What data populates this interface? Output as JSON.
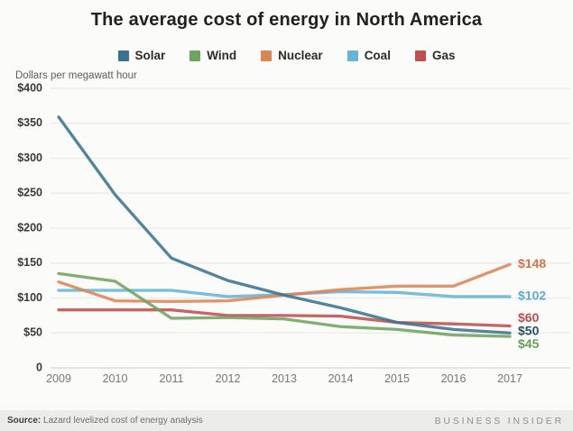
{
  "chart_data": {
    "type": "line",
    "title": "The average cost of energy in North America",
    "y_axis_label": "Dollars per megawatt hour",
    "categories": [
      "2009",
      "2010",
      "2011",
      "2012",
      "2013",
      "2014",
      "2015",
      "2016",
      "2017"
    ],
    "ylim": [
      0,
      400
    ],
    "grid": "horizontal",
    "legend_position": "top",
    "y_ticks": [
      {
        "value": 400,
        "label": "$400"
      },
      {
        "value": 350,
        "label": "$350"
      },
      {
        "value": 300,
        "label": "$300"
      },
      {
        "value": 250,
        "label": "$250"
      },
      {
        "value": 200,
        "label": "$200"
      },
      {
        "value": 150,
        "label": "$150"
      },
      {
        "value": 100,
        "label": "$100"
      },
      {
        "value": 50,
        "label": "$50"
      },
      {
        "value": 0,
        "label": "0"
      }
    ],
    "series": [
      {
        "name": "Solar",
        "color": "#3a7390",
        "end_label": "$50",
        "end_label_color": "#2a4f66",
        "values": [
          359,
          248,
          157,
          125,
          104,
          86,
          65,
          55,
          50
        ]
      },
      {
        "name": "Wind",
        "color": "#70a360",
        "end_label": "$45",
        "end_label_color": "#699e58",
        "values": [
          135,
          124,
          71,
          72,
          70,
          59,
          55,
          47,
          45
        ]
      },
      {
        "name": "Nuclear",
        "color": "#dd8455",
        "end_label": "$148",
        "end_label_color": "#d4744b",
        "values": [
          123,
          96,
          95,
          96,
          104,
          112,
          117,
          117,
          148
        ]
      },
      {
        "name": "Coal",
        "color": "#64b5d6",
        "end_label": "$102",
        "end_label_color": "#5fadcb",
        "values": [
          111,
          111,
          111,
          102,
          105,
          109,
          108,
          102,
          102
        ]
      },
      {
        "name": "Gas",
        "color": "#c0504f",
        "end_label": "$60",
        "end_label_color": "#bd4d4c",
        "values": [
          83,
          83,
          83,
          75,
          75,
          74,
          65,
          63,
          60
        ]
      }
    ],
    "draw_order": [
      "Coal",
      "Gas",
      "Nuclear",
      "Wind",
      "Solar"
    ]
  },
  "footer": {
    "source_label": "Source:",
    "source_text": " Lazard levelized cost of energy analysis",
    "brand": "BUSINESS INSIDER"
  }
}
